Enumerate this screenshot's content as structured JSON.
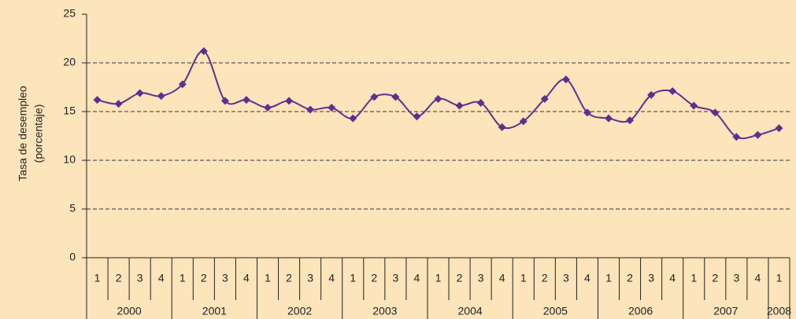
{
  "chart_data": {
    "type": "line",
    "y_label_lines": [
      "Tasa de desempleo",
      "(porcentaje)"
    ],
    "categories": [
      "1",
      "2",
      "3",
      "4",
      "1",
      "2",
      "3",
      "4",
      "1",
      "2",
      "3",
      "4",
      "1",
      "2",
      "3",
      "4",
      "1",
      "2",
      "3",
      "4",
      "1",
      "2",
      "3",
      "4",
      "1",
      "2",
      "3",
      "4",
      "1",
      "2",
      "3",
      "4",
      "1"
    ],
    "years": [
      "2000",
      "2001",
      "2002",
      "2003",
      "2004",
      "2005",
      "2006",
      "2007",
      "2008"
    ],
    "series": [
      {
        "color": "#5e2f8f",
        "values": [
          16.2,
          15.8,
          16.9,
          16.6,
          17.8,
          21.2,
          16.1,
          16.2,
          15.4,
          16.1,
          15.2,
          15.4,
          14.3,
          16.5,
          16.5,
          14.5,
          16.3,
          15.6,
          15.9,
          13.4,
          14.0,
          16.3,
          18.3,
          14.9,
          14.3,
          14.1,
          16.7,
          17.1,
          15.6,
          14.9,
          12.4,
          12.6,
          13.3
        ]
      }
    ],
    "ylim": [
      0,
      25
    ],
    "yticks": [
      0,
      5,
      10,
      15,
      20,
      25
    ],
    "grid": true
  }
}
